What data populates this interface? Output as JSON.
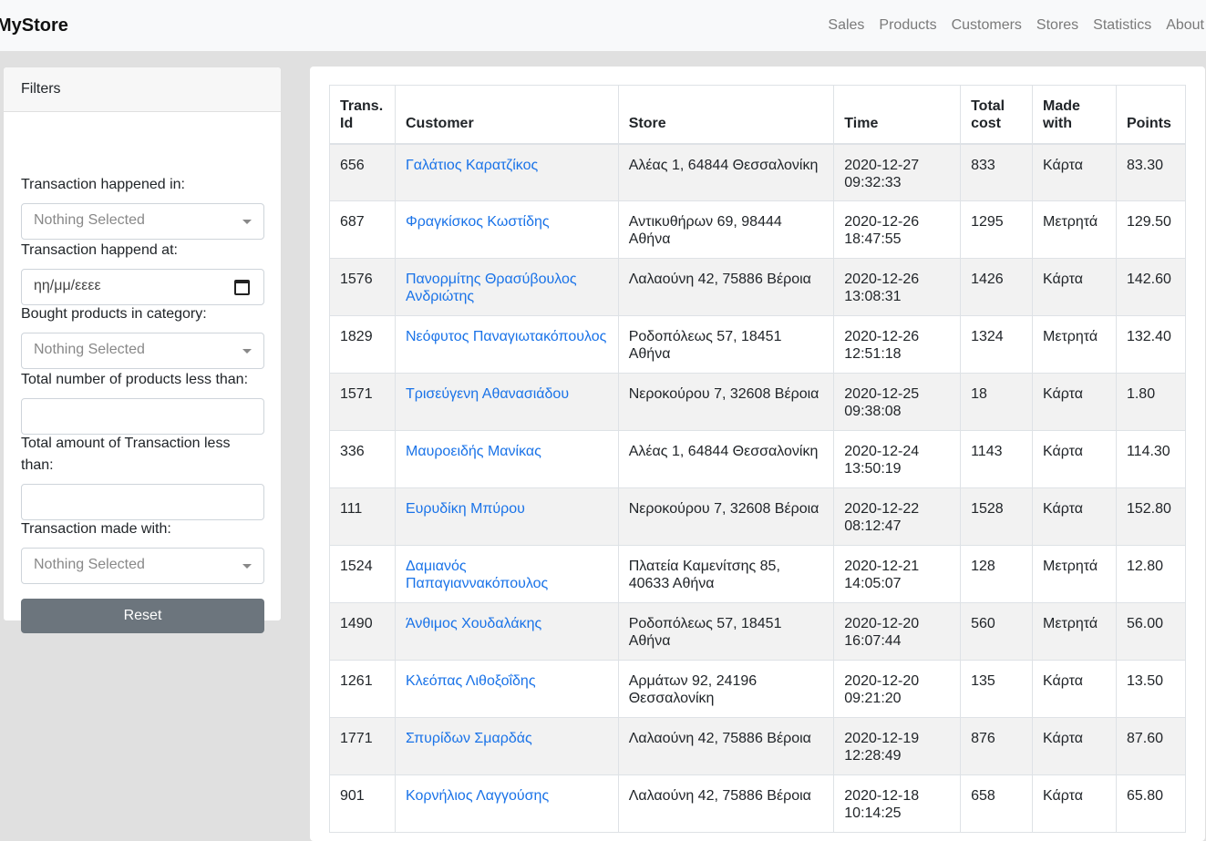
{
  "navbar": {
    "brand": "MyStore",
    "links": [
      "Sales",
      "Products",
      "Customers",
      "Stores",
      "Statistics",
      "About"
    ]
  },
  "filters": {
    "title": "Filters",
    "happened_in_label": "Transaction happened in:",
    "happened_in_value": "Nothing Selected",
    "happened_at_label": "Transaction happend at:",
    "happened_at_placeholder": "ηη/μμ/εεεε",
    "category_label": "Bought products in category:",
    "category_value": "Nothing Selected",
    "num_products_label": "Total number of products less than:",
    "num_products_value": "",
    "amount_label": "Total amount of Transaction less than:",
    "amount_value": "",
    "made_with_label": "Transaction made with:",
    "made_with_value": "Nothing Selected",
    "reset_label": "Reset"
  },
  "table": {
    "headers": [
      "Trans. Id",
      "Customer",
      "Store",
      "Time",
      "Total cost",
      "Made with",
      "Points"
    ],
    "rows": [
      {
        "id": "656",
        "customer": "Γαλάτιος Καρατζίκος",
        "store": "Αλέας 1, 64844 Θεσσαλονίκη",
        "time": "2020-12-27 09:32:33",
        "cost": "833",
        "made_with": "Κάρτα",
        "points": "83.30"
      },
      {
        "id": "687",
        "customer": "Φραγκίσκος Κωστίδης",
        "store": "Αντικυθήρων 69, 98444 Αθήνα",
        "time": "2020-12-26 18:47:55",
        "cost": "1295",
        "made_with": "Μετρητά",
        "points": "129.50"
      },
      {
        "id": "1576",
        "customer": "Πανορμίτης Θρασύβουλος Ανδριώτης",
        "store": "Λαλαούνη 42, 75886 Βέροια",
        "time": "2020-12-26 13:08:31",
        "cost": "1426",
        "made_with": "Κάρτα",
        "points": "142.60"
      },
      {
        "id": "1829",
        "customer": "Νεόφυτος Παναγιωτακόπουλος",
        "store": "Ροδοπόλεως 57, 18451 Αθήνα",
        "time": "2020-12-26 12:51:18",
        "cost": "1324",
        "made_with": "Μετρητά",
        "points": "132.40"
      },
      {
        "id": "1571",
        "customer": "Τρισεύγενη Αθανασιάδου",
        "store": "Νεροκούρου 7, 32608 Βέροια",
        "time": "2020-12-25 09:38:08",
        "cost": "18",
        "made_with": "Κάρτα",
        "points": "1.80"
      },
      {
        "id": "336",
        "customer": "Μαυροειδής Μανίκας",
        "store": "Αλέας 1, 64844 Θεσσαλονίκη",
        "time": "2020-12-24 13:50:19",
        "cost": "1143",
        "made_with": "Κάρτα",
        "points": "114.30"
      },
      {
        "id": "111",
        "customer": "Ευρυδίκη Μπύρου",
        "store": "Νεροκούρου 7, 32608 Βέροια",
        "time": "2020-12-22 08:12:47",
        "cost": "1528",
        "made_with": "Κάρτα",
        "points": "152.80"
      },
      {
        "id": "1524",
        "customer": "Δαμιανός Παπαγιαννακόπουλος",
        "store": "Πλατεία Καμενίτσης 85, 40633 Αθήνα",
        "time": "2020-12-21 14:05:07",
        "cost": "128",
        "made_with": "Μετρητά",
        "points": "12.80"
      },
      {
        "id": "1490",
        "customer": "Άνθιμος Χουδαλάκης",
        "store": "Ροδοπόλεως 57, 18451 Αθήνα",
        "time": "2020-12-20 16:07:44",
        "cost": "560",
        "made_with": "Μετρητά",
        "points": "56.00"
      },
      {
        "id": "1261",
        "customer": "Κλεόπας Λιθοξοΐδης",
        "store": "Αρμάτων 92, 24196 Θεσσαλονίκη",
        "time": "2020-12-20 09:21:20",
        "cost": "135",
        "made_with": "Κάρτα",
        "points": "13.50"
      },
      {
        "id": "1771",
        "customer": "Σπυρίδων Σμαρδάς",
        "store": "Λαλαούνη 42, 75886 Βέροια",
        "time": "2020-12-19 12:28:49",
        "cost": "876",
        "made_with": "Κάρτα",
        "points": "87.60"
      },
      {
        "id": "901",
        "customer": "Κορνήλιος Λαγγούσης",
        "store": "Λαλαούνη 42, 75886 Βέροια",
        "time": "2020-12-18 10:14:25",
        "cost": "658",
        "made_with": "Κάρτα",
        "points": "65.80"
      }
    ]
  }
}
